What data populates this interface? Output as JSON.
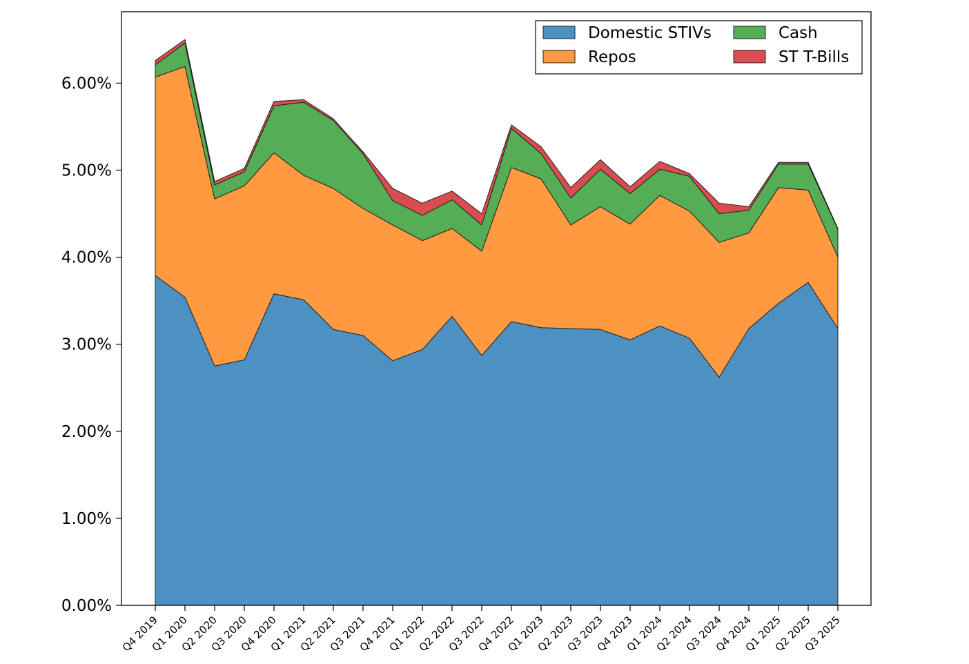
{
  "chart_data": {
    "type": "area",
    "stacked": true,
    "title": "",
    "xlabel": "",
    "ylabel": "",
    "categories": [
      "Q4 2019",
      "Q1 2020",
      "Q2 2020",
      "Q3 2020",
      "Q4 2020",
      "Q1 2021",
      "Q2 2021",
      "Q3 2021",
      "Q4 2021",
      "Q1 2022",
      "Q2 2022",
      "Q3 2022",
      "Q4 2022",
      "Q1 2023",
      "Q2 2023",
      "Q3 2023",
      "Q4 2023",
      "Q1 2024",
      "Q2 2024",
      "Q3 2024",
      "Q4 2024",
      "Q1 2025",
      "Q2 2025",
      "Q3 2025"
    ],
    "ylim": [
      0,
      6.82
    ],
    "yticks": [
      0,
      1,
      2,
      3,
      4,
      5,
      6
    ],
    "ytick_labels": [
      "0.00%",
      "1.00%",
      "2.00%",
      "3.00%",
      "4.00%",
      "5.00%",
      "6.00%"
    ],
    "grid": false,
    "legend_position": "top-right",
    "series": [
      {
        "name": "Domestic STIVs",
        "color": "#4c91c2",
        "values": [
          3.79,
          3.54,
          2.75,
          2.82,
          3.58,
          3.51,
          3.17,
          3.1,
          2.81,
          2.94,
          3.32,
          2.87,
          3.26,
          3.19,
          3.18,
          3.17,
          3.05,
          3.21,
          3.07,
          2.62,
          3.18,
          3.47,
          3.71,
          3.18
        ]
      },
      {
        "name": "Repos",
        "color": "#ff9a40",
        "values": [
          2.28,
          2.65,
          1.92,
          2.0,
          1.62,
          1.43,
          1.62,
          1.46,
          1.56,
          1.25,
          1.01,
          1.2,
          1.77,
          1.71,
          1.19,
          1.41,
          1.33,
          1.5,
          1.46,
          1.55,
          1.1,
          1.33,
          1.06,
          0.82
        ]
      },
      {
        "name": "Cash",
        "color": "#55ad55",
        "values": [
          0.14,
          0.27,
          0.16,
          0.16,
          0.54,
          0.84,
          0.78,
          0.63,
          0.28,
          0.29,
          0.33,
          0.3,
          0.45,
          0.29,
          0.31,
          0.43,
          0.35,
          0.3,
          0.4,
          0.33,
          0.26,
          0.27,
          0.3,
          0.32
        ]
      },
      {
        "name": "ST T-Bills",
        "color": "#d94c50",
        "values": [
          0.05,
          0.04,
          0.04,
          0.04,
          0.05,
          0.03,
          0.02,
          0.02,
          0.14,
          0.14,
          0.1,
          0.13,
          0.04,
          0.08,
          0.12,
          0.11,
          0.08,
          0.09,
          0.03,
          0.12,
          0.04,
          0.02,
          0.02,
          0.01
        ]
      }
    ]
  }
}
